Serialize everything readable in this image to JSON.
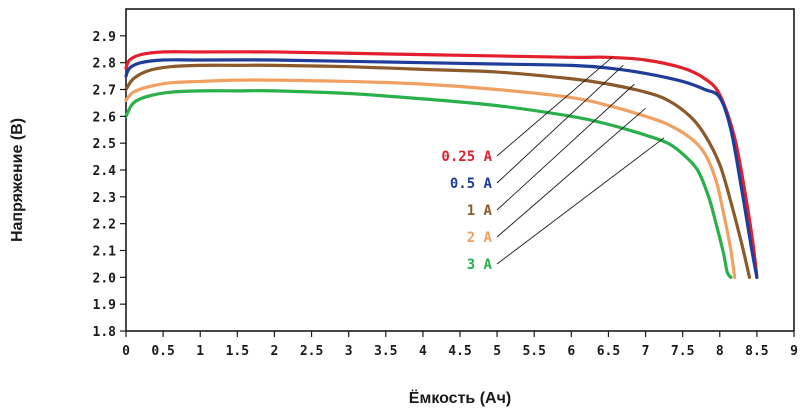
{
  "chart_data": {
    "type": "line",
    "title": "",
    "xlabel": "Ёмкость (Ач)",
    "ylabel": "Напряжение (В)",
    "xlim": [
      0,
      9
    ],
    "ylim": [
      1.8,
      3.0
    ],
    "xticks": [
      "0",
      "0.5",
      "1",
      "1.5",
      "2",
      "2.5",
      "3",
      "3.5",
      "4",
      "4.5",
      "5",
      "5.5",
      "6",
      "6.5",
      "7",
      "7.5",
      "8",
      "8.5",
      "9"
    ],
    "yticks": [
      "1.8",
      "1.9",
      "2.0",
      "2.1",
      "2.2",
      "2.3",
      "2.4",
      "2.5",
      "2.6",
      "2.7",
      "2.8",
      "2.9"
    ],
    "grid": false,
    "legend": "callout labels, center-right",
    "series": [
      {
        "name": "0.25 A",
        "color": "#e31e2d",
        "x": [
          0,
          0.05,
          0.2,
          0.5,
          1,
          2,
          3,
          4,
          5,
          6,
          6.5,
          7,
          7.5,
          7.8,
          8.0,
          8.2,
          8.35,
          8.45,
          8.5
        ],
        "y": [
          2.78,
          2.81,
          2.83,
          2.84,
          2.84,
          2.84,
          2.835,
          2.83,
          2.825,
          2.82,
          2.82,
          2.81,
          2.78,
          2.74,
          2.68,
          2.52,
          2.3,
          2.12,
          2.0
        ]
      },
      {
        "name": "0.5 A",
        "color": "#1f3d99",
        "x": [
          0,
          0.05,
          0.2,
          0.5,
          1,
          2,
          3,
          4,
          5,
          6,
          6.5,
          7,
          7.5,
          7.8,
          8.0,
          8.15,
          8.3,
          8.42,
          8.5
        ],
        "y": [
          2.75,
          2.78,
          2.8,
          2.81,
          2.81,
          2.81,
          2.805,
          2.8,
          2.795,
          2.79,
          2.78,
          2.76,
          2.73,
          2.7,
          2.67,
          2.55,
          2.32,
          2.12,
          2.0
        ]
      },
      {
        "name": "1 A",
        "color": "#8b5a2b",
        "x": [
          0,
          0.1,
          0.3,
          0.6,
          1,
          1.5,
          2,
          3,
          4,
          5,
          6,
          6.5,
          7,
          7.3,
          7.6,
          7.8,
          8.0,
          8.15,
          8.3,
          8.4
        ],
        "y": [
          2.7,
          2.74,
          2.77,
          2.785,
          2.79,
          2.79,
          2.79,
          2.785,
          2.775,
          2.765,
          2.74,
          2.72,
          2.69,
          2.66,
          2.6,
          2.53,
          2.42,
          2.28,
          2.12,
          2.0
        ]
      },
      {
        "name": "2 A",
        "color": "#f0a060",
        "x": [
          0,
          0.1,
          0.3,
          0.6,
          1,
          1.5,
          2,
          3,
          4,
          5,
          6,
          6.5,
          7,
          7.3,
          7.6,
          7.8,
          7.95,
          8.05,
          8.15,
          8.2
        ],
        "y": [
          2.66,
          2.69,
          2.71,
          2.725,
          2.73,
          2.735,
          2.735,
          2.73,
          2.72,
          2.7,
          2.67,
          2.64,
          2.6,
          2.57,
          2.52,
          2.46,
          2.36,
          2.24,
          2.1,
          2.0
        ]
      },
      {
        "name": "3 A",
        "color": "#2ab04a",
        "x": [
          0,
          0.1,
          0.3,
          0.6,
          1,
          1.5,
          2,
          3,
          4,
          5,
          6,
          6.5,
          7,
          7.3,
          7.5,
          7.7,
          7.85,
          7.95,
          8.05,
          8.1,
          8.15
        ],
        "y": [
          2.6,
          2.65,
          2.675,
          2.69,
          2.695,
          2.695,
          2.695,
          2.685,
          2.665,
          2.64,
          2.6,
          2.57,
          2.53,
          2.5,
          2.46,
          2.4,
          2.3,
          2.2,
          2.09,
          2.02,
          2.0
        ]
      }
    ],
    "callouts": [
      {
        "series": 0,
        "anchor": [
          6.55,
          2.82
        ]
      },
      {
        "series": 1,
        "anchor": [
          6.7,
          2.79
        ]
      },
      {
        "series": 2,
        "anchor": [
          6.85,
          2.72
        ]
      },
      {
        "series": 3,
        "anchor": [
          7.0,
          2.63
        ]
      },
      {
        "series": 4,
        "anchor": [
          7.25,
          2.52
        ]
      }
    ]
  }
}
